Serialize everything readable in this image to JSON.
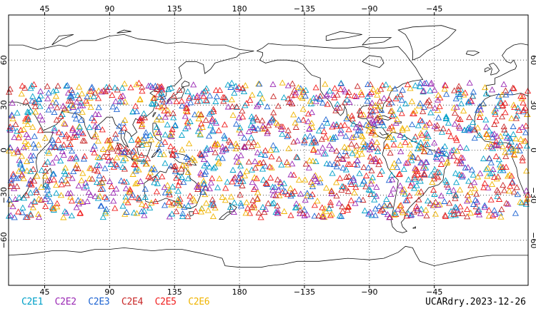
{
  "map": {
    "projection": "cylindrical-equidistant",
    "center_longitude": 180,
    "longitude_range": [
      20,
      380
    ],
    "latitude_range": [
      -90,
      90
    ],
    "grid": true,
    "grid_style": "dotted",
    "lon_ticks": [
      {
        "lon": 45,
        "label": "45"
      },
      {
        "lon": 90,
        "label": "90"
      },
      {
        "lon": 135,
        "label": "135"
      },
      {
        "lon": 180,
        "label": "180"
      },
      {
        "lon": 225,
        "label": "−135"
      },
      {
        "lon": 270,
        "label": "−90"
      },
      {
        "lon": 315,
        "label": "−45"
      }
    ],
    "lat_ticks": [
      {
        "lat": 60,
        "label": "60"
      },
      {
        "lat": 30,
        "label": "30"
      },
      {
        "lat": 0,
        "label": "0"
      },
      {
        "lat": -30,
        "label": "−30"
      },
      {
        "lat": -60,
        "label": "−60"
      }
    ],
    "marker": "open-triangle",
    "observation_lat_band": [
      -45,
      45
    ]
  },
  "legend": {
    "items": [
      {
        "label": "C2E1",
        "color": "#00a0c8"
      },
      {
        "label": "C2E2",
        "color": "#9a28b4"
      },
      {
        "label": "C2E3",
        "color": "#1e64d2"
      },
      {
        "label": "C2E4",
        "color": "#c82828"
      },
      {
        "label": "C2E5",
        "color": "#f01e1e"
      },
      {
        "label": "C2E6",
        "color": "#f0b400"
      }
    ]
  },
  "footer": {
    "label": "UCARdry.2023-12-26"
  }
}
